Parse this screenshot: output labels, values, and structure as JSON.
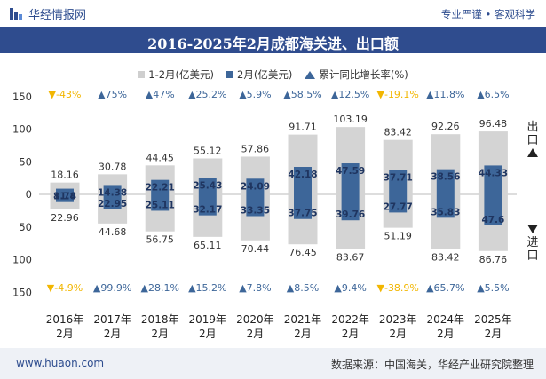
{
  "header": {
    "brand": "华经情报网",
    "tagline": "专业严谨 • 客观科学"
  },
  "chart_data": {
    "type": "bar",
    "title": "2016-2025年2月成都海关进、出口额",
    "categories": [
      "2016年\n2月",
      "2017年\n2月",
      "2018年\n2月",
      "2019年\n2月",
      "2020年\n2月",
      "2021年\n2月",
      "2022年\n2月",
      "2023年\n2月",
      "2024年\n2月",
      "2025年\n2月"
    ],
    "series": [
      {
        "name": "1-2月(亿美元)",
        "role": "cumulative",
        "color": "#d4d4d4",
        "export": [
          18.16,
          30.78,
          44.45,
          55.12,
          57.86,
          91.71,
          103.19,
          83.42,
          92.26,
          96.48
        ],
        "import": [
          22.96,
          44.68,
          56.75,
          65.11,
          70.44,
          76.45,
          83.67,
          51.19,
          83.42,
          86.76
        ]
      },
      {
        "name": "2月(亿美元)",
        "role": "monthly",
        "color": "#3d6699",
        "export": [
          8.74,
          14.38,
          22.21,
          25.43,
          24.09,
          42.18,
          47.59,
          37.71,
          38.56,
          44.33
        ],
        "import": [
          11.8,
          22.95,
          25.11,
          32.17,
          33.35,
          37.75,
          39.76,
          27.77,
          35.83,
          47.6
        ]
      },
      {
        "name": "累计同比增长率(%)",
        "export_growth": [
          "-43%",
          "75%",
          "47%",
          "25.2%",
          "5.9%",
          "58.5%",
          "12.5%",
          "-19.1%",
          "11.8%",
          "6.5%"
        ],
        "import_growth": [
          "-4.9%",
          "99.9%",
          "28.1%",
          "15.2%",
          "7.8%",
          "8.5%",
          "9.4%",
          "-38.9%",
          "65.7%",
          "5.5%"
        ]
      }
    ],
    "yaxis": {
      "ticks": [
        "150",
        "100",
        "50",
        "0",
        "50",
        "100",
        "150"
      ],
      "range": [
        -150,
        150
      ]
    },
    "side_labels": {
      "top": "出口",
      "bottom": "进口"
    },
    "colors": {
      "positive": "#3d6699",
      "negative": "#f2b600"
    }
  },
  "footer": {
    "url": "www.huaon.com",
    "source": "数据来源：中国海关，华经产业研究院整理"
  }
}
